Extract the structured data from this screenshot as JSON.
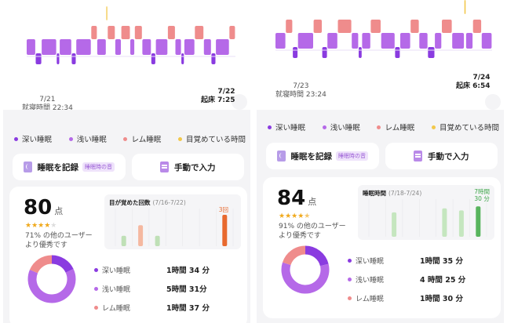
{
  "colors": {
    "deep": "#8a3be0",
    "light": "#b569e8",
    "rem": "#ef8c8c",
    "awake": "#f2c84b"
  },
  "legend": [
    {
      "key": "deep",
      "label": "深い睡眠"
    },
    {
      "key": "light",
      "label": "浅い睡眠"
    },
    {
      "key": "rem",
      "label": "レム睡眠"
    },
    {
      "key": "awake",
      "label": "目覚めている時間"
    }
  ],
  "left": {
    "bedtime": {
      "date": "7/21",
      "label": "就寝時間 22:34"
    },
    "wake": {
      "date": "7/22",
      "label": "起床 7:25"
    },
    "record_button": {
      "label": "睡眠を記録",
      "icon": "moon-icon",
      "badge": "睡眠時の音"
    },
    "manual_button": {
      "label": "手動で入力",
      "icon": "note-icon"
    },
    "score": {
      "value": "80",
      "unit": "点",
      "stars": 4,
      "better_line1": "71% の他のユーザー",
      "better_line2": "より優秀です"
    },
    "minichart": {
      "title": "目が覚めた回数",
      "range": "(7/16-7/22)",
      "values": [
        1,
        2,
        1,
        0,
        0,
        0,
        3
      ],
      "highlight": "3回"
    },
    "breakdown": [
      {
        "key": "deep",
        "label": "深い睡眠",
        "value": "1時間 34 分",
        "minutes": 94
      },
      {
        "key": "light",
        "label": "浅い睡眠",
        "value": "5時間 31分",
        "minutes": 331
      },
      {
        "key": "rem",
        "label": "レム睡眠",
        "value": "1時間 37 分",
        "minutes": 97
      }
    ]
  },
  "right": {
    "bedtime": {
      "date": "7/23",
      "label": "就寝時間 23:24"
    },
    "wake": {
      "date": "7/24",
      "label": "起床 6:54"
    },
    "record_button": {
      "label": "睡眠を記録",
      "icon": "moon-icon",
      "badge": "睡眠時の音"
    },
    "manual_button": {
      "label": "手動で入力",
      "icon": "note-icon"
    },
    "score": {
      "value": "84",
      "unit": "点",
      "stars": 4.5,
      "better_line1": "91% の他のユーザー",
      "better_line2": "より優秀です"
    },
    "minichart": {
      "title": "睡眠時間",
      "range": "(7/18-7/24)",
      "values": [
        0,
        6,
        0,
        0,
        7,
        6.5,
        7.5
      ],
      "highlight_line1": "7時間",
      "highlight_line2": "30 分"
    },
    "breakdown": [
      {
        "key": "deep",
        "label": "深い睡眠",
        "value": "1時間 35 分",
        "minutes": 95
      },
      {
        "key": "light",
        "label": "浅い睡眠",
        "value": "4 時間 25 分",
        "minutes": 265
      },
      {
        "key": "rem",
        "label": "レム睡眠",
        "value": "1時間 30 分",
        "minutes": 90
      }
    ]
  }
}
